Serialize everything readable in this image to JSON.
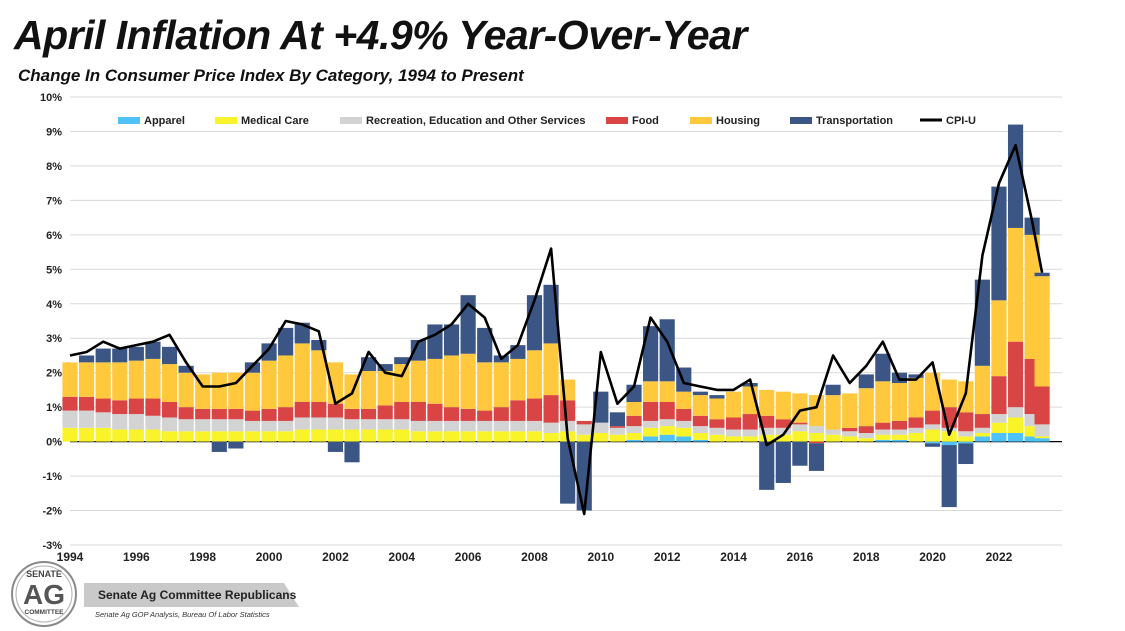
{
  "header": {
    "title": "April Inflation At +4.9% Year-Over-Year",
    "subtitle": "Change In Consumer Price Index By Category, 1994 to Present"
  },
  "footer": {
    "org_name": "Senate Ag Committee Republicans",
    "source": "Senate Ag GOP Analysis, Bureau Of Labor Statistics",
    "logo_text": [
      "SENATE",
      "AG",
      "COMMITTEE"
    ]
  },
  "chart_data": {
    "type": "bar",
    "stacked": true,
    "title": "April Inflation At +4.9% Year-Over-Year",
    "subtitle": "Change In Consumer Price Index By Category, 1994 to Present",
    "xlabel": "",
    "ylabel": "",
    "ylim": [
      -3,
      10
    ],
    "yticks": [
      "-3%",
      "-2%",
      "-1%",
      "0%",
      "1%",
      "2%",
      "3%",
      "4%",
      "5%",
      "6%",
      "7%",
      "8%",
      "9%",
      "10%"
    ],
    "xticks": [
      "1994",
      "1996",
      "1998",
      "2000",
      "2002",
      "2004",
      "2006",
      "2008",
      "2010",
      "2012",
      "2014",
      "2016",
      "2018",
      "2020",
      "2022"
    ],
    "xrange": [
      1994.0,
      2023.9
    ],
    "grid": true,
    "legend_position": "top",
    "x": [
      1994.0,
      1994.5,
      1995.0,
      1995.5,
      1996.0,
      1996.5,
      1997.0,
      1997.5,
      1998.0,
      1998.5,
      1999.0,
      1999.5,
      2000.0,
      2000.5,
      2001.0,
      2001.5,
      2002.0,
      2002.5,
      2003.0,
      2003.5,
      2004.0,
      2004.5,
      2005.0,
      2005.5,
      2006.0,
      2006.5,
      2007.0,
      2007.5,
      2008.0,
      2008.5,
      2009.0,
      2009.5,
      2010.0,
      2010.5,
      2011.0,
      2011.5,
      2012.0,
      2012.5,
      2013.0,
      2013.5,
      2014.0,
      2014.5,
      2015.0,
      2015.5,
      2016.0,
      2016.5,
      2017.0,
      2017.5,
      2018.0,
      2018.5,
      2019.0,
      2019.5,
      2020.0,
      2020.5,
      2021.0,
      2021.5,
      2022.0,
      2022.5,
      2023.0,
      2023.3
    ],
    "series": [
      {
        "name": "Apparel",
        "color": "#4FC3F7",
        "values": [
          0.0,
          0.0,
          0.0,
          0.0,
          0.0,
          0.0,
          0.0,
          0.0,
          0.0,
          0.0,
          0.0,
          0.0,
          0.0,
          0.0,
          0.0,
          0.0,
          0.0,
          0.0,
          0.0,
          0.0,
          0.0,
          0.0,
          0.0,
          0.0,
          0.0,
          0.0,
          0.0,
          0.0,
          0.0,
          0.0,
          0.0,
          0.0,
          0.0,
          0.0,
          0.05,
          0.15,
          0.2,
          0.15,
          0.05,
          0.0,
          0.0,
          0.0,
          0.0,
          0.0,
          0.0,
          0.0,
          0.0,
          0.0,
          0.0,
          0.05,
          0.05,
          0.0,
          -0.05,
          -0.1,
          -0.05,
          0.15,
          0.25,
          0.25,
          0.15,
          0.1
        ]
      },
      {
        "name": "Medical Care",
        "color": "#F9F42A",
        "values": [
          0.4,
          0.4,
          0.4,
          0.35,
          0.35,
          0.35,
          0.3,
          0.3,
          0.3,
          0.3,
          0.3,
          0.3,
          0.3,
          0.3,
          0.35,
          0.35,
          0.35,
          0.35,
          0.35,
          0.35,
          0.35,
          0.3,
          0.3,
          0.3,
          0.3,
          0.3,
          0.3,
          0.3,
          0.3,
          0.25,
          0.3,
          0.2,
          0.25,
          0.2,
          0.2,
          0.25,
          0.25,
          0.25,
          0.2,
          0.2,
          0.15,
          0.15,
          0.2,
          0.2,
          0.3,
          0.25,
          0.2,
          0.15,
          0.1,
          0.15,
          0.15,
          0.25,
          0.35,
          0.3,
          0.15,
          0.1,
          0.3,
          0.45,
          0.3,
          0.05
        ]
      },
      {
        "name": "Recreation, Education and Other Services",
        "color": "#D3D3D3",
        "values": [
          0.5,
          0.5,
          0.45,
          0.45,
          0.45,
          0.4,
          0.4,
          0.35,
          0.35,
          0.35,
          0.35,
          0.3,
          0.3,
          0.3,
          0.35,
          0.35,
          0.35,
          0.3,
          0.3,
          0.3,
          0.3,
          0.3,
          0.3,
          0.3,
          0.3,
          0.3,
          0.3,
          0.3,
          0.3,
          0.3,
          0.3,
          0.3,
          0.3,
          0.2,
          0.2,
          0.2,
          0.2,
          0.2,
          0.2,
          0.2,
          0.2,
          0.2,
          0.2,
          0.2,
          0.2,
          0.2,
          0.15,
          0.15,
          0.15,
          0.15,
          0.15,
          0.15,
          0.15,
          0.1,
          0.15,
          0.15,
          0.25,
          0.3,
          0.35,
          0.35
        ]
      },
      {
        "name": "Food",
        "color": "#D94545",
        "values": [
          0.4,
          0.4,
          0.4,
          0.4,
          0.45,
          0.5,
          0.45,
          0.35,
          0.3,
          0.3,
          0.3,
          0.3,
          0.35,
          0.4,
          0.45,
          0.45,
          0.4,
          0.3,
          0.3,
          0.4,
          0.5,
          0.55,
          0.5,
          0.4,
          0.35,
          0.3,
          0.4,
          0.6,
          0.65,
          0.8,
          0.6,
          0.1,
          0.0,
          0.05,
          0.3,
          0.55,
          0.5,
          0.35,
          0.3,
          0.25,
          0.35,
          0.45,
          0.35,
          0.25,
          0.05,
          -0.05,
          0.0,
          0.1,
          0.2,
          0.2,
          0.25,
          0.3,
          0.4,
          0.6,
          0.55,
          0.4,
          1.1,
          1.9,
          1.6,
          1.1
        ]
      },
      {
        "name": "Housing",
        "color": "#FFC83D",
        "values": [
          1.0,
          1.0,
          1.05,
          1.1,
          1.1,
          1.15,
          1.1,
          1.0,
          1.0,
          1.05,
          1.05,
          1.1,
          1.4,
          1.5,
          1.7,
          1.5,
          1.2,
          1.0,
          1.1,
          1.0,
          1.1,
          1.2,
          1.3,
          1.5,
          1.6,
          1.4,
          1.3,
          1.2,
          1.4,
          1.5,
          0.6,
          0.0,
          0.0,
          0.0,
          0.4,
          0.6,
          0.6,
          0.5,
          0.6,
          0.6,
          0.75,
          0.8,
          0.75,
          0.8,
          0.85,
          0.9,
          1.0,
          1.0,
          1.1,
          1.2,
          1.1,
          1.15,
          1.1,
          0.8,
          0.9,
          1.4,
          2.2,
          3.3,
          3.6,
          3.2
        ]
      },
      {
        "name": "Transportation",
        "color": "#3B5685",
        "values": [
          0.0,
          0.2,
          0.4,
          0.4,
          0.4,
          0.5,
          0.5,
          0.2,
          0.0,
          -0.3,
          -0.2,
          0.3,
          0.5,
          0.8,
          0.6,
          0.3,
          -0.3,
          -0.6,
          0.4,
          0.2,
          0.2,
          0.6,
          1.0,
          0.9,
          1.7,
          1.0,
          0.2,
          0.4,
          1.6,
          1.7,
          -1.8,
          -2.0,
          0.9,
          0.4,
          0.5,
          1.6,
          1.8,
          0.7,
          0.1,
          0.1,
          0.0,
          0.1,
          -1.4,
          -1.2,
          -0.7,
          -0.8,
          0.3,
          0.0,
          0.4,
          0.8,
          0.3,
          0.1,
          -0.1,
          -1.8,
          -0.6,
          2.5,
          3.3,
          3.0,
          0.5,
          0.1
        ]
      },
      {
        "name": "CPI-U",
        "color": "#000000",
        "type": "line",
        "values": [
          2.5,
          2.6,
          2.9,
          2.7,
          2.8,
          2.9,
          3.1,
          2.3,
          1.6,
          1.6,
          1.7,
          2.2,
          2.7,
          3.5,
          3.4,
          3.2,
          1.1,
          1.4,
          2.6,
          2.0,
          1.9,
          2.9,
          3.1,
          3.4,
          4.0,
          3.6,
          2.4,
          2.8,
          4.1,
          5.6,
          0.1,
          -2.1,
          2.6,
          1.1,
          1.6,
          3.6,
          2.9,
          1.7,
          1.6,
          1.5,
          1.5,
          1.8,
          -0.1,
          0.2,
          0.9,
          1.0,
          2.5,
          1.7,
          2.2,
          2.9,
          1.8,
          1.8,
          2.3,
          0.2,
          1.4,
          5.4,
          7.5,
          8.6,
          6.4,
          4.9
        ]
      }
    ]
  }
}
